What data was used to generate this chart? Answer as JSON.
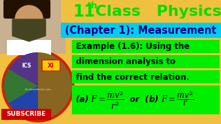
{
  "bg_color": "#f0c040",
  "title_color": "#00dd00",
  "chapter_bg": "#00ccee",
  "chapter_text_color": "#000088",
  "chapter_text": "(Chapter 1): Measurement",
  "example_bg": "#00ee00",
  "example_line1": "Example (1.6): Using the",
  "example_line2": "dimension analysis to",
  "example_line3": "find the correct relation.",
  "formula_bg": "#00ee00",
  "subscribe_bg": "#cc0000",
  "subscribe_color": "#ffffff",
  "subscribe_text": "SUBSCRIBE",
  "left_panel_bg": "#d4a070",
  "circle_border": "#cc2200",
  "circle_inner_left": "#3366aa",
  "circle_inner_right": "#996622",
  "person_bg": "#bbbbbb",
  "person_skin": "#cc9966",
  "person_beard": "#444422",
  "person_hair": "#221100",
  "xi_bg": "#ffcc00",
  "xi_color": "#cc0000",
  "ics_color": "#ffffff"
}
